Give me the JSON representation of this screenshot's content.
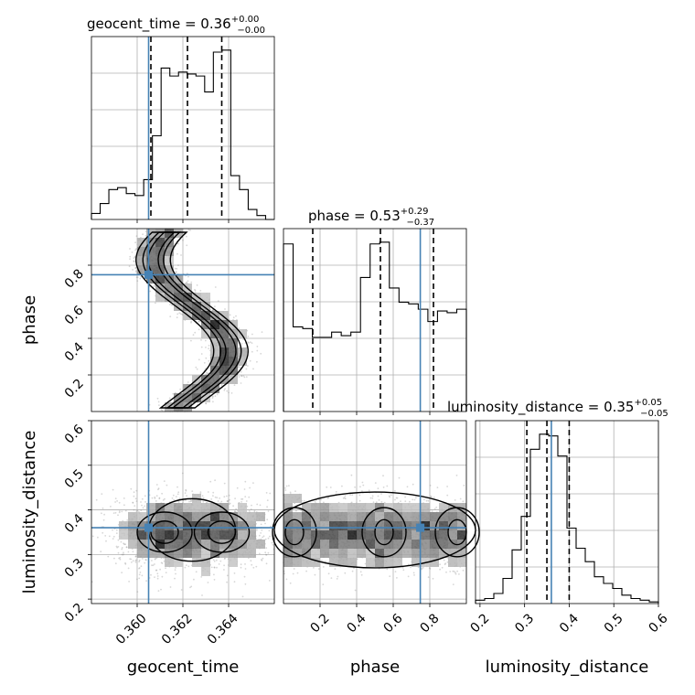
{
  "chart_data": {
    "type": "corner",
    "parameters": [
      {
        "name": "geocent_time",
        "median": "0.36",
        "plus": "+0.00",
        "minus": "−0.00",
        "truth": 0.3605,
        "quantiles": [
          0.3606,
          0.3622,
          0.3637
        ],
        "range": [
          0.358,
          0.366
        ],
        "ticks": [
          0.36,
          0.362,
          0.364
        ],
        "tick_labels": [
          "0.360",
          "0.362",
          "0.364"
        ]
      },
      {
        "name": "phase",
        "median": "0.53",
        "plus": "+0.29",
        "minus": "−0.37",
        "truth": 0.748,
        "quantiles": [
          0.16,
          0.53,
          0.82
        ],
        "range": [
          0.0,
          1.0
        ],
        "ticks": [
          0.2,
          0.4,
          0.6,
          0.8
        ],
        "tick_labels": [
          "0.2",
          "0.4",
          "0.6",
          "0.8"
        ]
      },
      {
        "name": "luminosity_distance",
        "median": "0.35",
        "plus": "+0.05",
        "minus": "−0.05",
        "truth": 0.36,
        "quantiles": [
          0.305,
          0.35,
          0.4
        ],
        "range": [
          0.19,
          0.6
        ],
        "ticks": [
          0.2,
          0.3,
          0.4,
          0.5,
          0.6
        ],
        "tick_labels": [
          "0.2",
          "0.3",
          "0.4",
          "0.5",
          "0.6"
        ]
      }
    ],
    "histograms": [
      {
        "parameter": "geocent_time",
        "counts": [
          3,
          8,
          15,
          16,
          13,
          12,
          20,
          42,
          76,
          72,
          74,
          73,
          72,
          64,
          84,
          85,
          22,
          15,
          5,
          2,
          0
        ]
      },
      {
        "parameter": "phase",
        "counts": [
          95,
          48,
          47,
          42,
          42,
          45,
          43,
          45,
          76,
          95,
          96,
          70,
          62,
          61,
          58,
          51,
          57,
          56,
          58
        ]
      },
      {
        "parameter": "luminosity_distance",
        "counts": [
          2,
          3,
          6,
          15,
          32,
          52,
          92,
          101,
          100,
          88,
          45,
          33,
          25,
          16,
          12,
          9,
          5,
          3,
          2,
          1
        ]
      }
    ],
    "title": "",
    "grid": true,
    "truth_color": "#4682b4"
  }
}
